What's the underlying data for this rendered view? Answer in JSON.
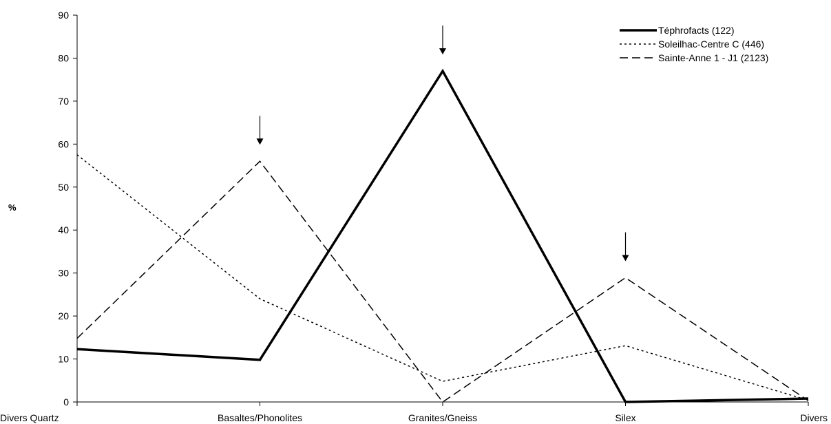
{
  "chart_data": {
    "type": "line",
    "title": "",
    "xlabel": "",
    "ylabel": "%",
    "ylim": [
      0,
      90
    ],
    "yticks": [
      0,
      10,
      20,
      30,
      40,
      50,
      60,
      70,
      80,
      90
    ],
    "categories": [
      "Divers Quartz",
      "Basaltes/Phonolites",
      "Granites/Gneiss",
      "Silex",
      "Divers"
    ],
    "series": [
      {
        "name": "Téphrofacts (122)",
        "values": [
          12.3,
          9.8,
          77,
          0,
          0.8
        ],
        "style": "solid-thick",
        "color": "#000000"
      },
      {
        "name": "Soleilhac-Centre C (446)",
        "values": [
          57.5,
          24,
          4.8,
          13.1,
          0.4
        ],
        "style": "dotted",
        "color": "#000000"
      },
      {
        "name": "Sainte-Anne 1 - J1 (2123)",
        "values": [
          14.8,
          56,
          0,
          28.9,
          0.3
        ],
        "style": "dashed",
        "color": "#000000"
      }
    ],
    "annotations": [
      {
        "type": "arrow-down",
        "category_index": 1,
        "y": 56
      },
      {
        "type": "arrow-down",
        "category_index": 2,
        "y": 77
      },
      {
        "type": "arrow-down",
        "category_index": 3,
        "y": 28.9
      }
    ],
    "grid": false,
    "legend_position": "top-right"
  }
}
